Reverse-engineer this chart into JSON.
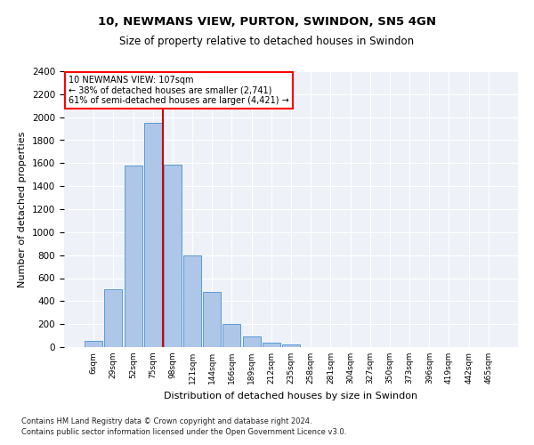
{
  "title1": "10, NEWMANS VIEW, PURTON, SWINDON, SN5 4GN",
  "title2": "Size of property relative to detached houses in Swindon",
  "xlabel": "Distribution of detached houses by size in Swindon",
  "ylabel": "Number of detached properties",
  "footnote1": "Contains HM Land Registry data © Crown copyright and database right 2024.",
  "footnote2": "Contains public sector information licensed under the Open Government Licence v3.0.",
  "bar_labels": [
    "6sqm",
    "29sqm",
    "52sqm",
    "75sqm",
    "98sqm",
    "121sqm",
    "144sqm",
    "166sqm",
    "189sqm",
    "212sqm",
    "235sqm",
    "258sqm",
    "281sqm",
    "304sqm",
    "327sqm",
    "350sqm",
    "373sqm",
    "396sqm",
    "419sqm",
    "442sqm",
    "465sqm"
  ],
  "bar_heights": [
    55,
    500,
    1580,
    1950,
    1590,
    800,
    480,
    200,
    95,
    35,
    25,
    0,
    0,
    0,
    0,
    0,
    0,
    0,
    0,
    0,
    0
  ],
  "bar_color": "#aec6e8",
  "bar_edge_color": "#5b9bd5",
  "bg_color": "#eef2f8",
  "grid_color": "#ffffff",
  "ylim_max": 2400,
  "yticks": [
    0,
    200,
    400,
    600,
    800,
    1000,
    1200,
    1400,
    1600,
    1800,
    2000,
    2200,
    2400
  ],
  "annotation_line1": "10 NEWMANS VIEW: 107sqm",
  "annotation_line2": "← 38% of detached houses are smaller (2,741)",
  "annotation_line3": "61% of semi-detached houses are larger (4,421) →",
  "vline_x": 3.5,
  "vline_color": "#cc0000",
  "title1_fontsize": 9.5,
  "title2_fontsize": 8.5
}
